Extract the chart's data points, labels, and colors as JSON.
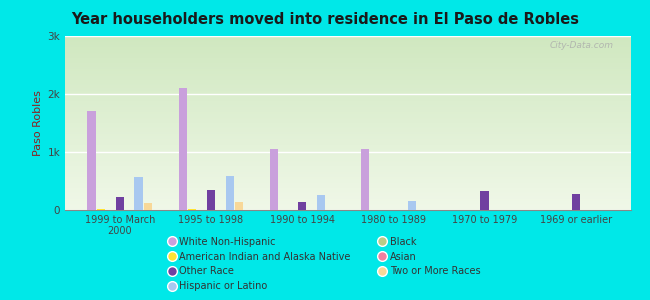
{
  "title": "Year householders moved into residence in El Paso de Robles",
  "ylabel": "Paso Robles",
  "categories": [
    "1999 to March\n2000",
    "1995 to 1998",
    "1990 to 1994",
    "1980 to 1989",
    "1970 to 1979",
    "1969 or earlier"
  ],
  "series": {
    "White Non-Hispanic": [
      1700,
      2100,
      1050,
      1050,
      0,
      0
    ],
    "American Indian and Alaska Native": [
      15,
      15,
      5,
      5,
      0,
      0
    ],
    "Black": [
      5,
      5,
      5,
      5,
      5,
      5
    ],
    "Other Race": [
      220,
      350,
      130,
      0,
      330,
      280
    ],
    "Asian": [
      5,
      5,
      5,
      5,
      0,
      0
    ],
    "Hispanic or Latino": [
      570,
      580,
      260,
      160,
      0,
      0
    ],
    "Two or More Races": [
      120,
      130,
      0,
      0,
      0,
      0
    ]
  },
  "colors": {
    "White Non-Hispanic": "#c9a0dc",
    "American Indian and Alaska Native": "#ffe333",
    "Black": "#b8cc88",
    "Other Race": "#7040a0",
    "Asian": "#f080a0",
    "Hispanic or Latino": "#a8c8f0",
    "Two or More Races": "#f8d898"
  },
  "ylim": [
    0,
    3000
  ],
  "yticks": [
    0,
    1000,
    2000,
    3000
  ],
  "ytick_labels": [
    "0",
    "1k",
    "2k",
    "3k"
  ],
  "bg_color": "#00e8e8",
  "plot_bg_top": "#d0e8c0",
  "plot_bg_bottom": "#f0f8e8",
  "watermark": "City-Data.com",
  "legend_order_left": [
    "White Non-Hispanic",
    "American Indian and Alaska Native",
    "Other Race",
    "Hispanic or Latino"
  ],
  "legend_order_right": [
    "Black",
    "Asian",
    "Two or More Races"
  ]
}
